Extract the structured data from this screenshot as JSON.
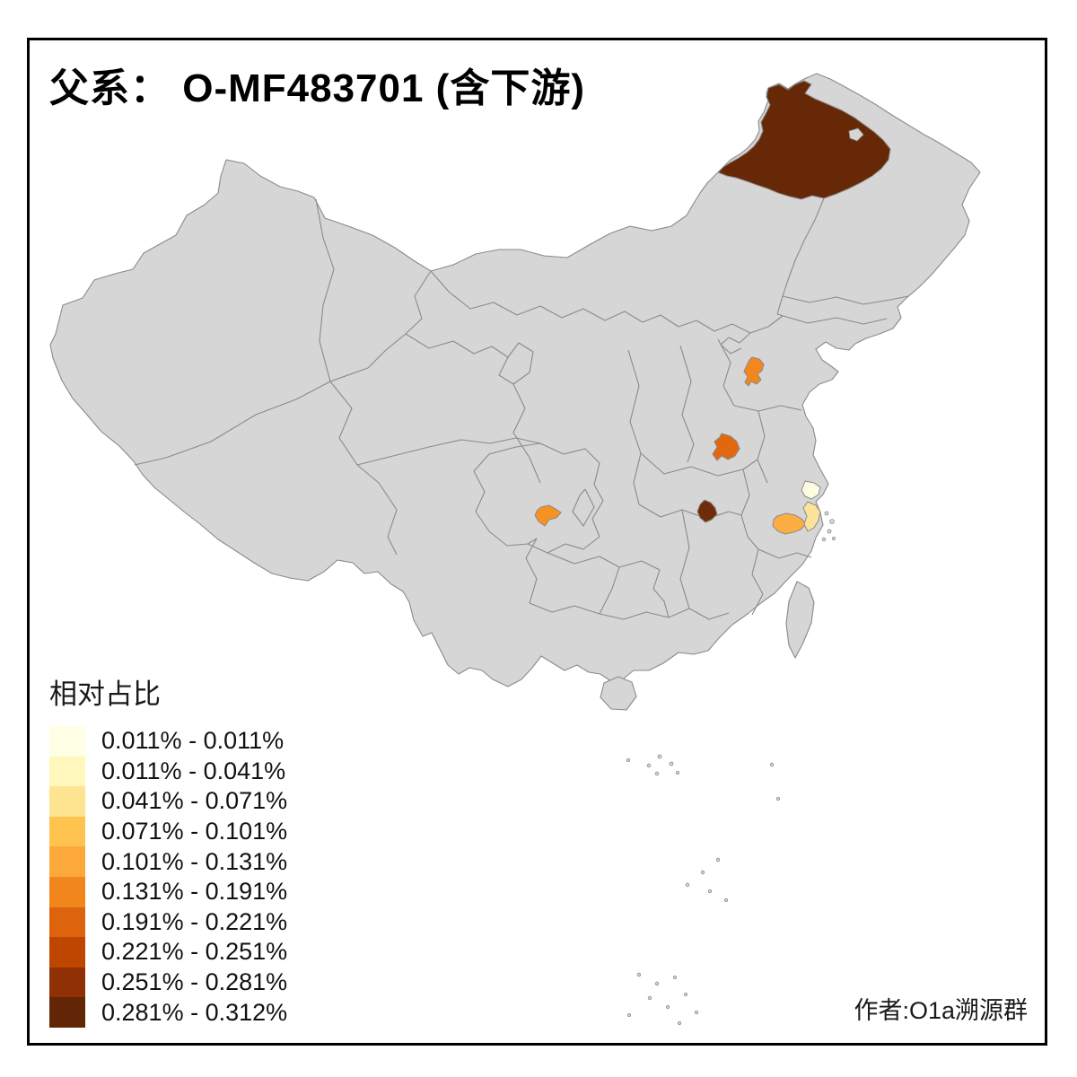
{
  "title": "父系： O-MF483701 (含下游)",
  "attribution": "作者:O1a溯源群",
  "legend": {
    "title": "相对占比",
    "items": [
      {
        "label": "0.011% - 0.011%",
        "color": "#FFFFE5"
      },
      {
        "label": "0.011% - 0.041%",
        "color": "#FFF7BC"
      },
      {
        "label": "0.041% - 0.071%",
        "color": "#FEE391"
      },
      {
        "label": "0.071% - 0.101%",
        "color": "#FEC44F"
      },
      {
        "label": "0.101% - 0.131%",
        "color": "#FDA83B"
      },
      {
        "label": "0.131% - 0.191%",
        "color": "#F1861D"
      },
      {
        "label": "0.191% - 0.221%",
        "color": "#DD640D"
      },
      {
        "label": "0.221% - 0.251%",
        "color": "#BF4600"
      },
      {
        "label": "0.251% - 0.281%",
        "color": "#8F3104"
      },
      {
        "label": "0.281% - 0.312%",
        "color": "#622506"
      }
    ]
  },
  "map": {
    "base_fill": "#D6D6D6",
    "border_color": "#8A8A8A",
    "background": "#FFFFFF",
    "frame_color": "#000000",
    "regions": {
      "hulunbuir": {
        "color": "#672808",
        "value_range": "0.281% - 0.312%"
      },
      "hubei": {
        "color": "#702B08",
        "value_range": "0.251% - 0.281%"
      },
      "huaibei": {
        "color": "#E2680F",
        "value_range": "0.191% - 0.221%"
      },
      "shandong": {
        "color": "#F1871E",
        "value_range": "0.131% - 0.191%"
      },
      "sichuan": {
        "color": "#F69124",
        "value_range": "0.131% - 0.191%"
      },
      "zhejiang_west": {
        "color": "#FDAE42",
        "value_range": "0.101% - 0.131%"
      },
      "zhejiang_coast": {
        "color": "#FCE29A",
        "value_range": "0.041% - 0.071%"
      },
      "north_zhejiang": {
        "color": "#FEFBE3",
        "value_range": "0.011% - 0.011%"
      }
    }
  }
}
